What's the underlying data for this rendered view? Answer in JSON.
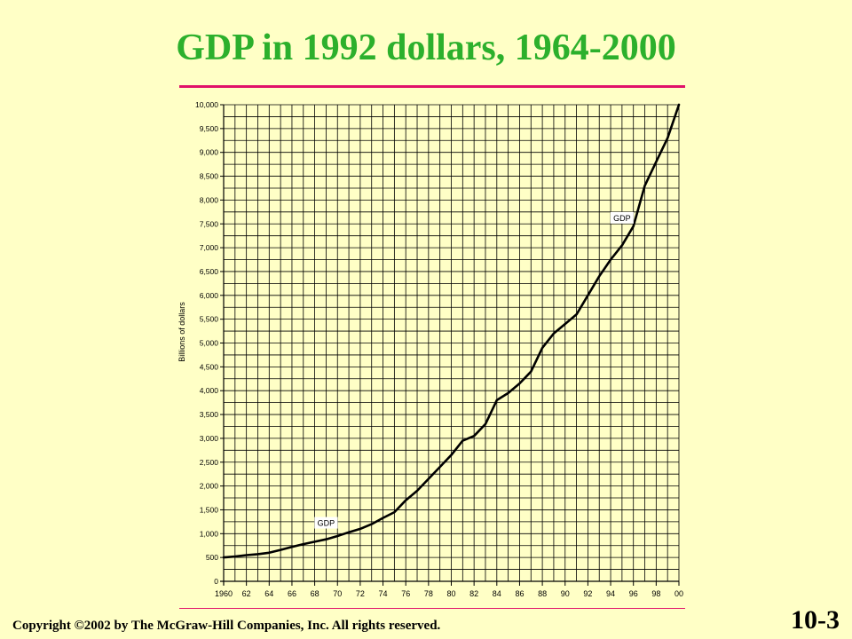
{
  "slide": {
    "title": "GDP in 1992 dollars, 1964-2000",
    "copyright": "Copyright ©2002 by The McGraw-Hill Companies, Inc.  All rights reserved.",
    "slide_number": "10-3",
    "title_color": "#2CB02C",
    "rule_color": "#E0116A",
    "background": "#FFFFC6"
  },
  "chart_data": {
    "type": "line",
    "title": "",
    "xlabel": "",
    "ylabel": "Billions of dollars",
    "xlim": [
      1960,
      2000
    ],
    "ylim": [
      0,
      10000
    ],
    "x_ticks": [
      1960,
      1962,
      1964,
      1966,
      1968,
      1970,
      1972,
      1974,
      1976,
      1978,
      1980,
      1982,
      1984,
      1986,
      1988,
      1990,
      1992,
      1994,
      1996,
      1998,
      2000
    ],
    "x_tick_labels": [
      "1960",
      "62",
      "64",
      "66",
      "68",
      "70",
      "72",
      "74",
      "76",
      "78",
      "80",
      "82",
      "84",
      "86",
      "88",
      "90",
      "92",
      "94",
      "96",
      "98",
      "00"
    ],
    "y_ticks": [
      0,
      500,
      1000,
      1500,
      2000,
      2500,
      3000,
      3500,
      4000,
      4500,
      5000,
      5500,
      6000,
      6500,
      7000,
      7500,
      8000,
      8500,
      9000,
      9500,
      10000
    ],
    "y_tick_labels": [
      "0",
      "500",
      "1,000",
      "1,500",
      "2,000",
      "2,500",
      "3,000",
      "3,500",
      "4,000",
      "4,500",
      "5,000",
      "5,500",
      "6,000",
      "6,500",
      "7,000",
      "7,500",
      "8,000",
      "8,500",
      "9,000",
      "9,500",
      "10,000"
    ],
    "grid": true,
    "series": [
      {
        "name": "GDP",
        "x": [
          1960,
          1961,
          1962,
          1963,
          1964,
          1965,
          1966,
          1967,
          1968,
          1969,
          1970,
          1971,
          1972,
          1973,
          1974,
          1975,
          1976,
          1977,
          1978,
          1979,
          1980,
          1981,
          1982,
          1983,
          1984,
          1985,
          1986,
          1987,
          1988,
          1989,
          1990,
          1991,
          1992,
          1993,
          1994,
          1995,
          1996,
          1997,
          1998,
          1999,
          2000
        ],
        "values": [
          500,
          520,
          550,
          570,
          600,
          660,
          720,
          780,
          830,
          880,
          950,
          1030,
          1100,
          1200,
          1330,
          1450,
          1700,
          1900,
          2150,
          2400,
          2650,
          2950,
          3050,
          3300,
          3800,
          3950,
          4150,
          4400,
          4900,
          5200,
          5400,
          5600,
          6000,
          6400,
          6750,
          7050,
          7450,
          8300,
          8800,
          9300,
          10000
        ]
      }
    ],
    "annotations": [
      {
        "text": "GDP",
        "x": 1969,
        "y": 1200
      },
      {
        "text": "GDP",
        "x": 1995,
        "y": 7600
      }
    ]
  }
}
